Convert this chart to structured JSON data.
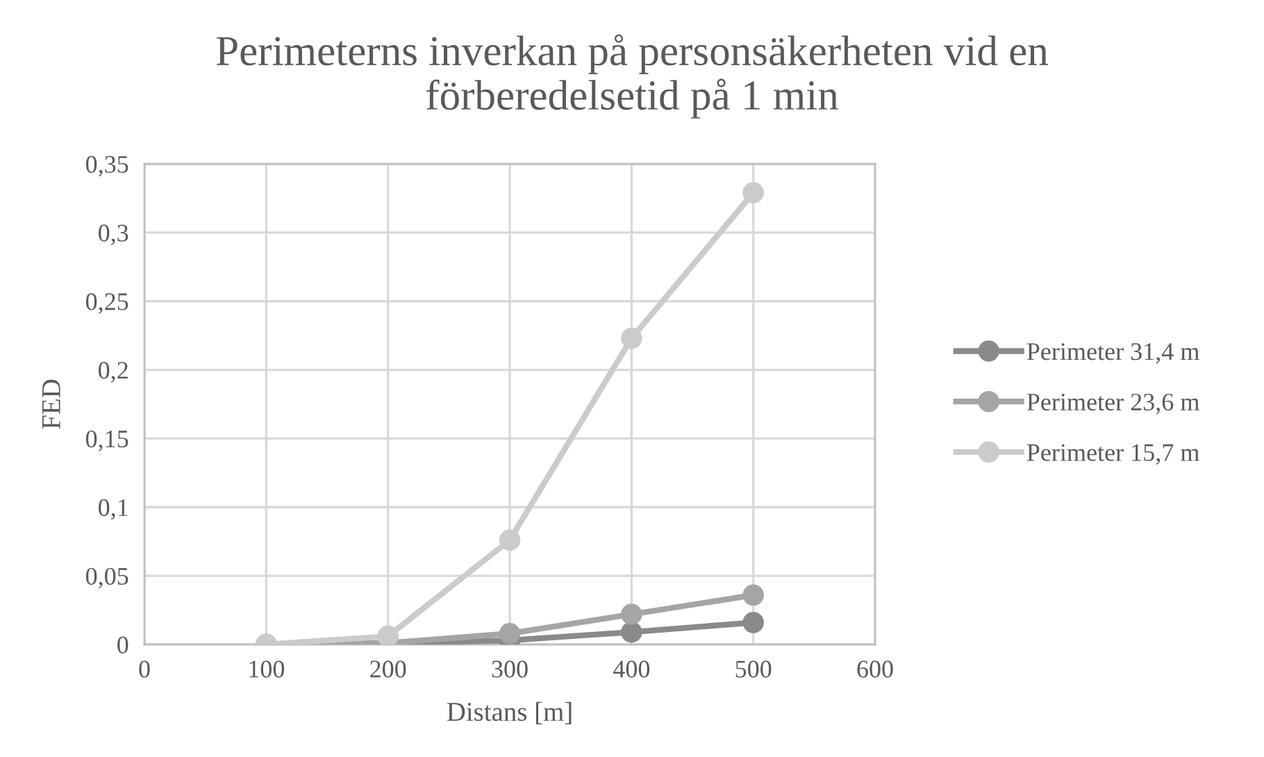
{
  "chart_data": {
    "type": "line",
    "title": "Perimeterns inverkan på personsäkerheten vid en förberedelsetid på 1 min",
    "xlabel": "Distans [m]",
    "ylabel": "FED",
    "x": [
      100,
      200,
      300,
      400,
      500
    ],
    "series": [
      {
        "name": "Perimeter 31,4 m",
        "color": "#8a8a8a",
        "values": [
          0,
          0.001,
          0.003,
          0.009,
          0.016
        ]
      },
      {
        "name": "Perimeter 23,6 m",
        "color": "#a5a5a5",
        "values": [
          0,
          0.001,
          0.008,
          0.022,
          0.036
        ]
      },
      {
        "name": "Perimeter 15,7 m",
        "color": "#cbcbcb",
        "values": [
          0,
          0.006,
          0.076,
          0.223,
          0.329
        ]
      }
    ],
    "xlim": [
      0,
      600
    ],
    "xticks": [
      0,
      100,
      200,
      300,
      400,
      500,
      600
    ],
    "ylim": [
      0,
      0.35
    ],
    "yticks": [
      0,
      {
        "value": 0.05,
        "label": "0,05"
      },
      {
        "value": 0.1,
        "label": "0,1"
      },
      {
        "value": 0.15,
        "label": "0,15"
      },
      {
        "value": 0.2,
        "label": "0,2"
      },
      {
        "value": 0.25,
        "label": "0,25"
      },
      {
        "value": 0.3,
        "label": "0,3"
      },
      {
        "value": 0.35,
        "label": "0,35"
      }
    ],
    "grid": true,
    "legend": "right",
    "marker": "circle",
    "line_style": "solid"
  }
}
